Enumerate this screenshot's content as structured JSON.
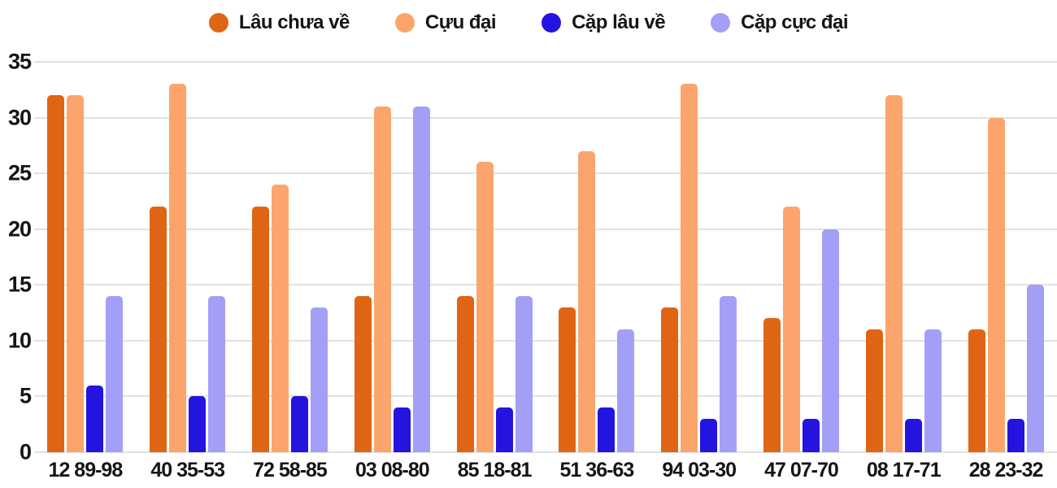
{
  "style": {
    "background": "#FFFFFF",
    "text_color": "#141519",
    "grid_color": "#E2E2E2"
  },
  "chart_data": {
    "type": "bar",
    "title": "",
    "xlabel": "",
    "ylabel": "",
    "ylim": [
      0,
      35
    ],
    "yticks": [
      0,
      5,
      10,
      15,
      20,
      25,
      30,
      35
    ],
    "grid": true,
    "legend_position": "top",
    "categories": [
      "12 89-98",
      "40 35-53",
      "72 58-85",
      "03 08-80",
      "85 18-81",
      "51 36-63",
      "94 03-30",
      "47 07-70",
      "08 17-71",
      "28 23-32"
    ],
    "series": [
      {
        "name": "Lâu chưa về",
        "color": "#DF6514",
        "values": [
          32,
          22,
          22,
          14,
          14,
          13,
          13,
          12,
          11,
          11
        ]
      },
      {
        "name": "Cựu đại",
        "color": "#FBA56C",
        "values": [
          32,
          33,
          24,
          31,
          26,
          27,
          33,
          22,
          32,
          30
        ]
      },
      {
        "name": "Cặp lâu về",
        "color": "#2414DF",
        "values": [
          6,
          5,
          5,
          4,
          4,
          4,
          3,
          3,
          3,
          3
        ]
      },
      {
        "name": "Cặp cực đại",
        "color": "#A39FF7",
        "values": [
          14,
          14,
          13,
          31,
          14,
          11,
          14,
          20,
          11,
          15
        ]
      }
    ]
  }
}
